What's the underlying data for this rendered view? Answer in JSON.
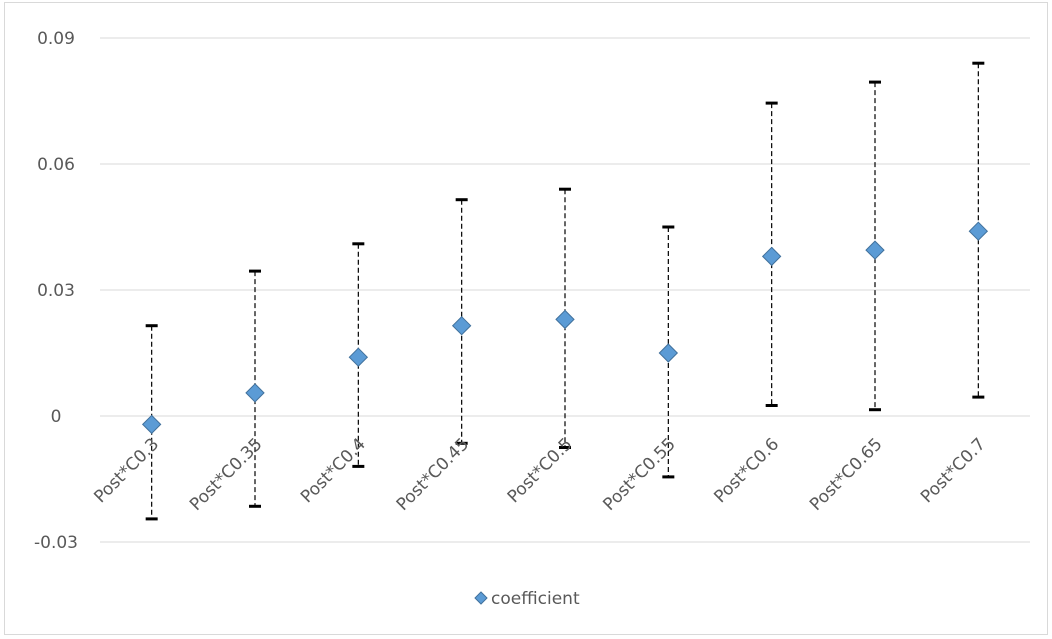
{
  "chart_data": {
    "type": "scatter",
    "title": "",
    "xlabel": "",
    "ylabel": "",
    "categories": [
      "Post*C0.3",
      "Post*C0.35",
      "Post*C0.4",
      "Post*C0.45",
      "Post*C0.5",
      "Post*C0.55",
      "Post*C0.6",
      "Post*C0.65",
      "Post*C0.7"
    ],
    "series": [
      {
        "name": "coefficient",
        "values": [
          -0.002,
          0.0055,
          0.014,
          0.0215,
          0.023,
          0.015,
          0.038,
          0.0395,
          0.044
        ],
        "lower": [
          -0.0245,
          -0.0215,
          -0.012,
          -0.0065,
          -0.0075,
          -0.0145,
          0.0025,
          0.0015,
          0.0045
        ],
        "upper": [
          0.0215,
          0.0345,
          0.041,
          0.0515,
          0.054,
          0.045,
          0.0745,
          0.0795,
          0.084
        ],
        "marker": "diamond",
        "color": "#5b9bd5"
      }
    ],
    "ylim": [
      -0.03,
      0.09
    ],
    "yticks": [
      "-0.03",
      "0",
      "0.03",
      "0.06",
      "0.09"
    ],
    "grid": true,
    "legend": {
      "position": "bottom",
      "entries": [
        "coefficient"
      ]
    },
    "error_bar_style": "dashed",
    "gridline_color": "#d9d9d9",
    "marker_color": "#5b9bd5",
    "marker_edge_color": "#41719c"
  }
}
